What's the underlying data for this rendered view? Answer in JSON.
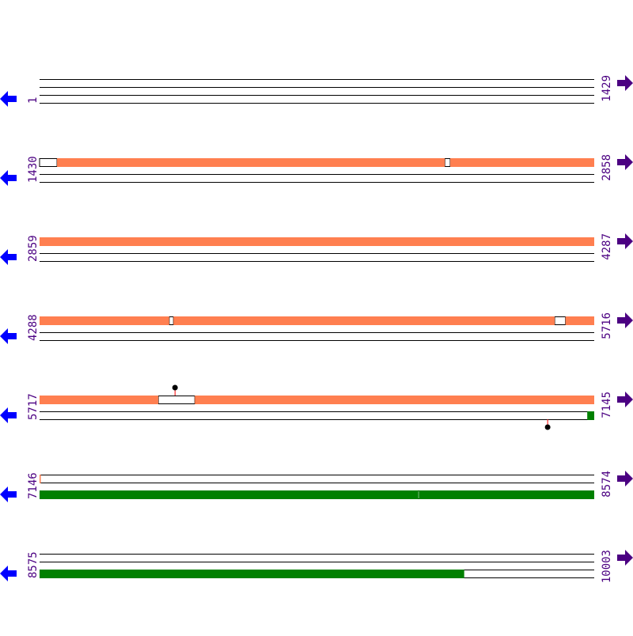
{
  "colors": {
    "forward_feature": "#ff7f50",
    "reverse_feature": "#008000",
    "left_arrow": "#0000ff",
    "right_arrow": "#4b0082",
    "label": "#4b0082",
    "marker_stem": "#ff0000"
  },
  "icons": {
    "left": "arrow-left-icon",
    "right": "arrow-right-icon"
  },
  "rows": [
    {
      "start": "1",
      "end": "1429",
      "s": 1,
      "e": 1429,
      "top": [],
      "bottom": [],
      "gaps_top": [],
      "markers": []
    },
    {
      "start": "1430",
      "end": "2858",
      "s": 1430,
      "e": 2858,
      "top": [
        [
          1475,
          2473
        ],
        [
          2488,
          2858
        ]
      ],
      "bottom": [],
      "gaps_top": [
        [
          1430,
          1474
        ],
        [
          2474,
          2487
        ]
      ],
      "markers": []
    },
    {
      "start": "2859",
      "end": "4287",
      "s": 2859,
      "e": 4287,
      "top": [
        [
          2859,
          4287
        ]
      ],
      "bottom": [],
      "gaps_top": [],
      "markers": []
    },
    {
      "start": "4288",
      "end": "5716",
      "s": 4288,
      "e": 5716,
      "top": [
        [
          4288,
          4621
        ],
        [
          4633,
          5614
        ],
        [
          5643,
          5716
        ]
      ],
      "bottom": [],
      "gaps_top": [
        [
          4622,
          4632
        ],
        [
          5615,
          5642
        ]
      ],
      "markers": []
    },
    {
      "start": "5717",
      "end": "7145",
      "s": 5717,
      "e": 7145,
      "top": [
        [
          5717,
          6022
        ],
        [
          6117,
          7145
        ]
      ],
      "bottom": [
        [
          7128,
          7145
        ]
      ],
      "gaps_top": [
        [
          6023,
          6116
        ]
      ],
      "markers": [
        {
          "pos": 6066,
          "track": "top"
        },
        {
          "pos": 7026,
          "track": "bottom"
        }
      ]
    },
    {
      "start": "7146",
      "end": "8574",
      "s": 7146,
      "e": 8574,
      "top": [
        [
          7146,
          7146
        ]
      ],
      "bottom": [
        [
          7146,
          8121
        ],
        [
          8123,
          8574
        ]
      ],
      "gaps_top": [],
      "markers": []
    },
    {
      "start": "8575",
      "end": "10003",
      "s": 8575,
      "e": 10003,
      "top": [],
      "bottom": [
        [
          8575,
          9668
        ]
      ],
      "gaps_top": [],
      "markers": []
    }
  ]
}
